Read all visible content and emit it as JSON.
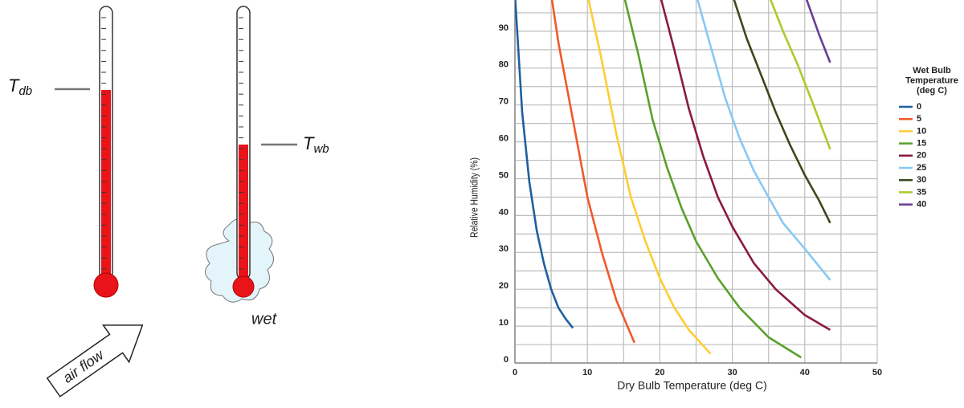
{
  "diagram": {
    "dry_bulb_label": {
      "symbol": "T",
      "subscript": "db"
    },
    "wet_bulb_label": {
      "symbol": "T",
      "subscript": "wb"
    },
    "wet_label": "wet",
    "airflow_label": "air flow"
  },
  "chart_data": {
    "type": "line",
    "x_label": "Dry Bulb Temperature (deg C)",
    "y_label": "Relative Humidity (%)",
    "legend_title": [
      "Wet Bulb",
      "Temperature",
      "(deg C)"
    ],
    "legend": "right",
    "xlim": [
      0,
      50
    ],
    "xticks": [
      0,
      10,
      20,
      30,
      40,
      50
    ],
    "xminor": [
      5,
      15,
      25,
      35,
      45
    ],
    "ylim": [
      0,
      100
    ],
    "yticks": [
      0,
      10,
      20,
      30,
      40,
      50,
      60,
      70,
      80,
      90
    ],
    "yminor": [
      5,
      15,
      25,
      35,
      45,
      55,
      65,
      75,
      85,
      95
    ],
    "grid": true,
    "series": [
      {
        "name": "0",
        "color": "#1f5f9f",
        "x": [
          0,
          1,
          2,
          3,
          4,
          5,
          6,
          7,
          8
        ],
        "values": [
          100,
          68,
          49,
          36,
          27,
          20,
          15,
          12,
          9.5
        ]
      },
      {
        "name": "5",
        "color": "#f05a28",
        "x": [
          5,
          6,
          8,
          10,
          12,
          14,
          16.5
        ],
        "values": [
          100,
          87,
          66,
          45,
          30,
          17,
          5.5
        ]
      },
      {
        "name": "10",
        "color": "#ffcc33",
        "x": [
          10,
          12,
          14,
          16,
          18,
          20,
          22,
          24,
          27
        ],
        "values": [
          100,
          82,
          62,
          45,
          33,
          23,
          15,
          9,
          2.5
        ]
      },
      {
        "name": "15",
        "color": "#5aa02c",
        "x": [
          15,
          17,
          19,
          21,
          23,
          25,
          28,
          31,
          35,
          39.5
        ],
        "values": [
          100,
          84,
          66,
          53,
          42,
          33,
          23,
          15,
          7,
          1.5
        ]
      },
      {
        "name": "20",
        "color": "#8b1a3a",
        "x": [
          20,
          22,
          24,
          26,
          28,
          30,
          33,
          36,
          40,
          43.5
        ],
        "values": [
          100,
          85,
          69,
          56,
          45,
          37,
          27,
          20,
          13,
          9
        ]
      },
      {
        "name": "25",
        "color": "#87c8f5",
        "x": [
          25,
          27,
          29,
          31,
          33,
          35,
          37,
          40,
          43.5
        ],
        "values": [
          100,
          86,
          72,
          61,
          52,
          45,
          38,
          31,
          22.5
        ]
      },
      {
        "name": "30",
        "color": "#3b4a1e",
        "x": [
          30,
          32,
          34,
          36,
          38,
          40,
          42,
          43.5
        ],
        "values": [
          100,
          88,
          78,
          68,
          59,
          51,
          44,
          38
        ]
      },
      {
        "name": "35",
        "color": "#a8cc2a",
        "x": [
          35,
          37,
          39,
          41,
          43.5
        ],
        "values": [
          100,
          90,
          81,
          71,
          58
        ]
      },
      {
        "name": "40",
        "color": "#6a3d9a",
        "x": [
          40,
          42,
          43.5
        ],
        "values": [
          100,
          89,
          81.5
        ]
      }
    ]
  }
}
